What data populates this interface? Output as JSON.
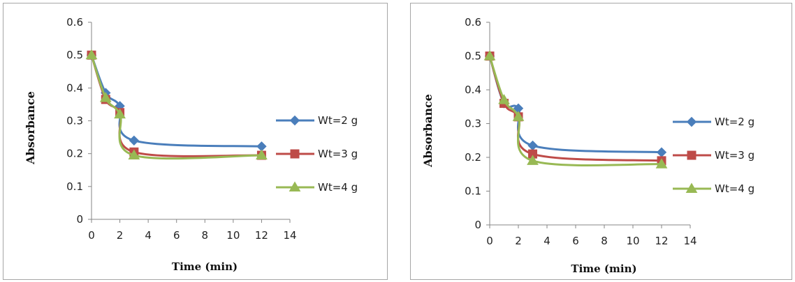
{
  "colors": {
    "Wt=2 g": "#4a7ebb",
    "Wt=3 g": "#be4b48",
    "Wt=4 g": "#98b954"
  },
  "chart_data": [
    {
      "type": "line",
      "xlabel": "Time (min)",
      "ylabel": "Absorbance",
      "xlim": [
        0,
        14
      ],
      "ylim": [
        0,
        0.6
      ],
      "xticks": [
        "0",
        "2",
        "4",
        "6",
        "8",
        "10",
        "12",
        "14"
      ],
      "yticks": [
        "0",
        "0.1",
        "0.2",
        "0.3",
        "0.4",
        "0.5",
        "0.6"
      ],
      "grid": false,
      "legend_position": "right",
      "x": [
        0,
        1,
        2,
        3,
        12
      ],
      "series": [
        {
          "name": "Wt=2 g",
          "marker": "diamond",
          "values": [
            0.5,
            0.385,
            0.345,
            0.24,
            0.222
          ]
        },
        {
          "name": "Wt=3 g",
          "marker": "square",
          "values": [
            0.5,
            0.365,
            0.325,
            0.205,
            0.195
          ]
        },
        {
          "name": "Wt=4 g",
          "marker": "triangle",
          "values": [
            0.5,
            0.37,
            0.32,
            0.195,
            0.195
          ]
        }
      ]
    },
    {
      "type": "line",
      "xlabel": "Time (min)",
      "ylabel": "Absorbance",
      "xlim": [
        0,
        14
      ],
      "ylim": [
        0,
        0.6
      ],
      "xticks": [
        "0",
        "2",
        "4",
        "6",
        "8",
        "10",
        "12",
        "14"
      ],
      "yticks": [
        "0",
        "0.1",
        "0.2",
        "0.3",
        "0.4",
        "0.5",
        "0.6"
      ],
      "grid": false,
      "legend_position": "right",
      "x": [
        0,
        1,
        2,
        3,
        12
      ],
      "series": [
        {
          "name": "Wt=2 g",
          "marker": "diamond",
          "values": [
            0.5,
            0.36,
            0.345,
            0.235,
            0.215
          ]
        },
        {
          "name": "Wt=3 g",
          "marker": "square",
          "values": [
            0.5,
            0.36,
            0.32,
            0.21,
            0.19
          ]
        },
        {
          "name": "Wt=4 g",
          "marker": "triangle",
          "values": [
            0.5,
            0.37,
            0.32,
            0.19,
            0.18
          ]
        }
      ]
    }
  ]
}
